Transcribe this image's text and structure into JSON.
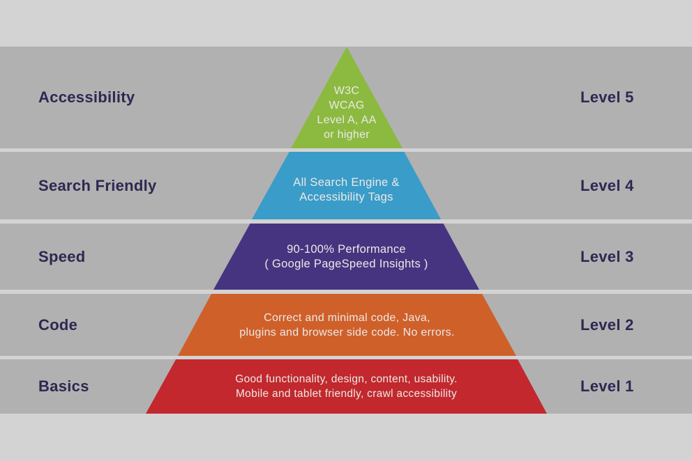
{
  "colors": {
    "page_background": "#d3d3d3",
    "band_background": "#b1b1b1",
    "label_text": "#2d2852",
    "pyramid_text": "#ebe9e6"
  },
  "rows": [
    {
      "category": "Accessibility",
      "level": "Level 5",
      "color": "#8cba41",
      "lines": [
        "W3C",
        "WCAG",
        "Level A, AA",
        "or higher"
      ]
    },
    {
      "category": "Search Friendly",
      "level": "Level 4",
      "color": "#3a9cc8",
      "lines": [
        "All Search Engine &",
        "Accessibility Tags"
      ]
    },
    {
      "category": "Speed",
      "level": "Level 3",
      "color": "#473480",
      "lines": [
        "90-100% Performance",
        "( Google PageSpeed Insights )"
      ]
    },
    {
      "category": "Code",
      "level": "Level 2",
      "color": "#d0602a",
      "lines": [
        "Correct and minimal code, Java,",
        "plugins and browser side code. No errors."
      ]
    },
    {
      "category": "Basics",
      "level": "Level 1",
      "color": "#c2282d",
      "lines": [
        "Good functionality, design, content, usability.",
        "Mobile and tablet friendly, crawl accessibility"
      ]
    }
  ]
}
